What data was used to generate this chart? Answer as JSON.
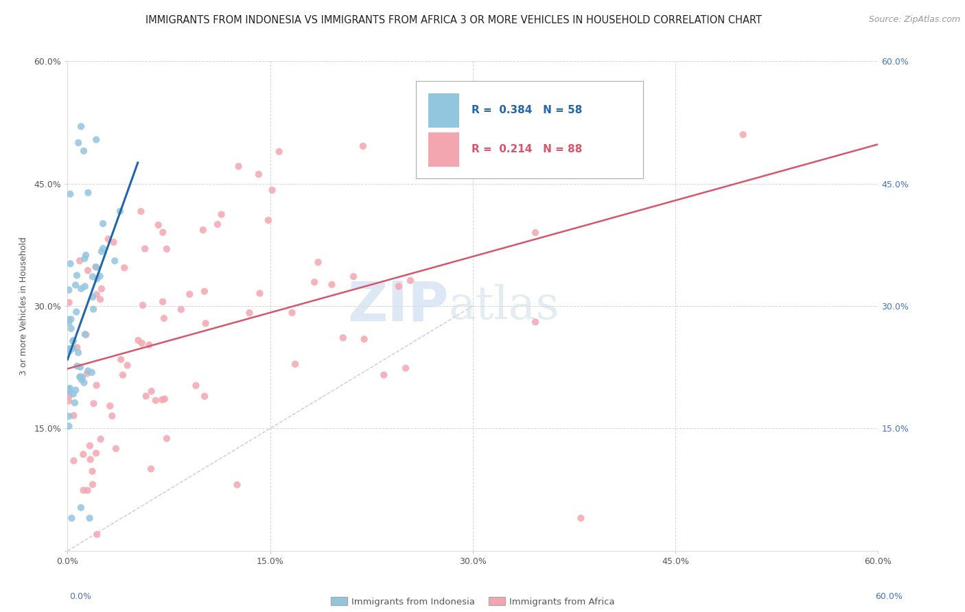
{
  "title": "IMMIGRANTS FROM INDONESIA VS IMMIGRANTS FROM AFRICA 3 OR MORE VEHICLES IN HOUSEHOLD CORRELATION CHART",
  "source": "Source: ZipAtlas.com",
  "ylabel": "3 or more Vehicles in Household",
  "xlim": [
    0.0,
    0.6
  ],
  "ylim": [
    0.0,
    0.6
  ],
  "xticks": [
    0.0,
    0.15,
    0.3,
    0.45,
    0.6
  ],
  "yticks": [
    0.0,
    0.15,
    0.3,
    0.45,
    0.6
  ],
  "legend1_r": "0.384",
  "legend1_n": "58",
  "legend2_r": "0.214",
  "legend2_n": "88",
  "color_indonesia": "#92c5de",
  "color_africa": "#f4a6b0",
  "trendline_color_indonesia": "#2166ac",
  "trendline_color_africa": "#d6556a",
  "trendline_dashed_color": "#c0c0c0",
  "background_color": "#ffffff",
  "grid_color": "#cccccc",
  "watermark_zip": "ZIP",
  "watermark_atlas": "atlas",
  "title_fontsize": 10.5,
  "source_fontsize": 9,
  "axis_label_fontsize": 9,
  "tick_fontsize": 9,
  "right_tick_color": "#4472c4",
  "seed": 17
}
